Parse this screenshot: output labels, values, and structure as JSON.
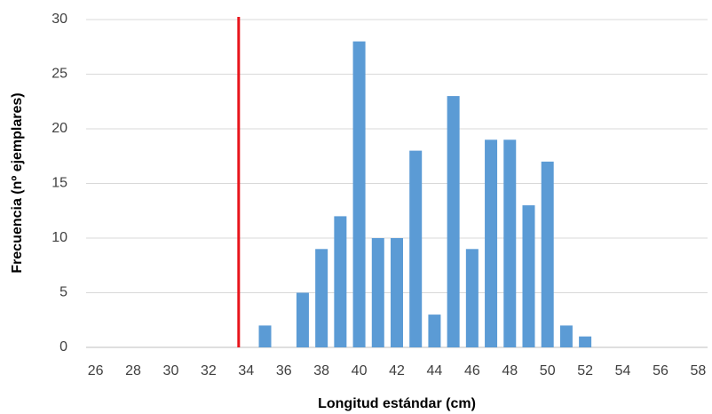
{
  "chart_data": {
    "type": "bar",
    "x_label": "Longitud estándar (cm)",
    "y_label": "Frecuencia (nº ejemplares)",
    "categories": [
      "26",
      null,
      "28",
      null,
      "30",
      null,
      "32",
      null,
      "34",
      null,
      "36",
      null,
      "38",
      null,
      "40",
      null,
      "42",
      null,
      "44",
      null,
      "46",
      null,
      "48",
      null,
      "50",
      null,
      "52",
      null,
      "54",
      null,
      "56",
      null,
      "58"
    ],
    "values": [
      0,
      0,
      0,
      0,
      0,
      0,
      0,
      0,
      0,
      2,
      0,
      5,
      9,
      12,
      28,
      10,
      10,
      18,
      3,
      23,
      9,
      19,
      19,
      13,
      17,
      2,
      1,
      0,
      0,
      0,
      0,
      0,
      0
    ],
    "color": "#5b9bd5",
    "ylim": [
      0,
      30
    ],
    "yticks": [
      0,
      5,
      10,
      15,
      20,
      25,
      30
    ],
    "grid": true,
    "reference_line": {
      "x": 33.6,
      "color": "#e8141b"
    }
  }
}
